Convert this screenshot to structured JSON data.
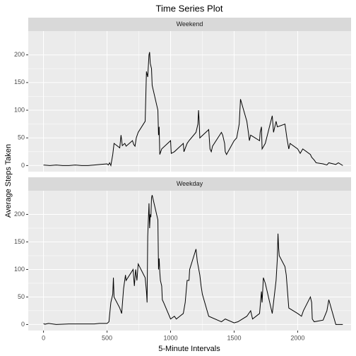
{
  "chart_data": {
    "type": "line",
    "title": "Time Series Plot",
    "xlabel": "5-Minute Intervals",
    "ylabel": "Average Steps Taken",
    "xlim": [
      -120,
      2420
    ],
    "xticks": [
      0,
      500,
      1000,
      1500,
      2000
    ],
    "ylim": [
      -11,
      243
    ],
    "yticks": [
      0,
      50,
      100,
      150,
      200
    ],
    "grid": true,
    "series": [
      {
        "name": "Weekend",
        "color": "#000000",
        "x": [
          0,
          50,
          100,
          150,
          200,
          250,
          300,
          350,
          400,
          450,
          500,
          510,
          520,
          530,
          545,
          555,
          600,
          610,
          620,
          640,
          650,
          700,
          710,
          720,
          730,
          745,
          800,
          805,
          810,
          820,
          830,
          835,
          840,
          850,
          855,
          900,
          905,
          910,
          915,
          930,
          1000,
          1005,
          1030,
          1100,
          1105,
          1130,
          1145,
          1200,
          1215,
          1220,
          1225,
          1230,
          1300,
          1310,
          1320,
          1330,
          1400,
          1410,
          1425,
          1430,
          1440,
          1500,
          1520,
          1540,
          1550,
          1600,
          1615,
          1620,
          1630,
          1700,
          1705,
          1715,
          1720,
          1745,
          1800,
          1810,
          1830,
          1840,
          1900,
          1915,
          1930,
          1940,
          2000,
          2020,
          2040,
          2100,
          2110,
          2130,
          2145,
          2200,
          2230,
          2245,
          2300,
          2320,
          2355
        ],
        "values": [
          1,
          0,
          1,
          0,
          0,
          1,
          0,
          0,
          1,
          2,
          3,
          1,
          5,
          0,
          20,
          40,
          32,
          55,
          36,
          40,
          35,
          45,
          38,
          35,
          50,
          60,
          80,
          125,
          170,
          160,
          200,
          205,
          185,
          175,
          145,
          100,
          55,
          70,
          20,
          30,
          45,
          22,
          25,
          40,
          25,
          40,
          45,
          60,
          75,
          100,
          80,
          50,
          65,
          30,
          25,
          35,
          60,
          55,
          40,
          25,
          20,
          45,
          50,
          75,
          120,
          80,
          55,
          45,
          55,
          45,
          60,
          70,
          30,
          40,
          90,
          60,
          80,
          70,
          75,
          50,
          30,
          40,
          30,
          22,
          30,
          20,
          15,
          10,
          5,
          3,
          1,
          5,
          2,
          5,
          0
        ]
      },
      {
        "name": "Weekday",
        "color": "#000000",
        "x": [
          0,
          10,
          40,
          100,
          200,
          300,
          400,
          440,
          500,
          515,
          530,
          545,
          550,
          555,
          600,
          615,
          630,
          645,
          650,
          705,
          715,
          725,
          735,
          745,
          800,
          810,
          815,
          820,
          830,
          835,
          840,
          845,
          850,
          855,
          900,
          905,
          910,
          915,
          920,
          930,
          935,
          945,
          1000,
          1030,
          1045,
          1100,
          1115,
          1130,
          1145,
          1150,
          1200,
          1210,
          1230,
          1240,
          1250,
          1300,
          1400,
          1430,
          1500,
          1530,
          1600,
          1630,
          1645,
          1700,
          1715,
          1720,
          1730,
          1745,
          1800,
          1815,
          1830,
          1840,
          1845,
          1850,
          1855,
          1900,
          1910,
          1930,
          2000,
          2030,
          2045,
          2100,
          2110,
          2115,
          2130,
          2200,
          2230,
          2245,
          2300,
          2355
        ],
        "values": [
          2,
          0.5,
          2,
          0,
          1,
          1,
          1,
          2,
          2,
          5,
          40,
          55,
          85,
          50,
          30,
          20,
          65,
          90,
          80,
          100,
          70,
          100,
          80,
          110,
          85,
          60,
          40,
          160,
          220,
          175,
          200,
          195,
          230,
          235,
          190,
          100,
          120,
          95,
          80,
          70,
          45,
          40,
          10,
          15,
          10,
          20,
          40,
          80,
          80,
          100,
          137,
          115,
          90,
          70,
          55,
          15,
          5,
          10,
          3,
          5,
          15,
          25,
          10,
          20,
          60,
          40,
          85,
          75,
          20,
          50,
          80,
          120,
          165,
          140,
          125,
          105,
          90,
          30,
          20,
          15,
          25,
          50,
          40,
          10,
          5,
          8,
          25,
          45,
          0,
          0
        ]
      }
    ]
  }
}
